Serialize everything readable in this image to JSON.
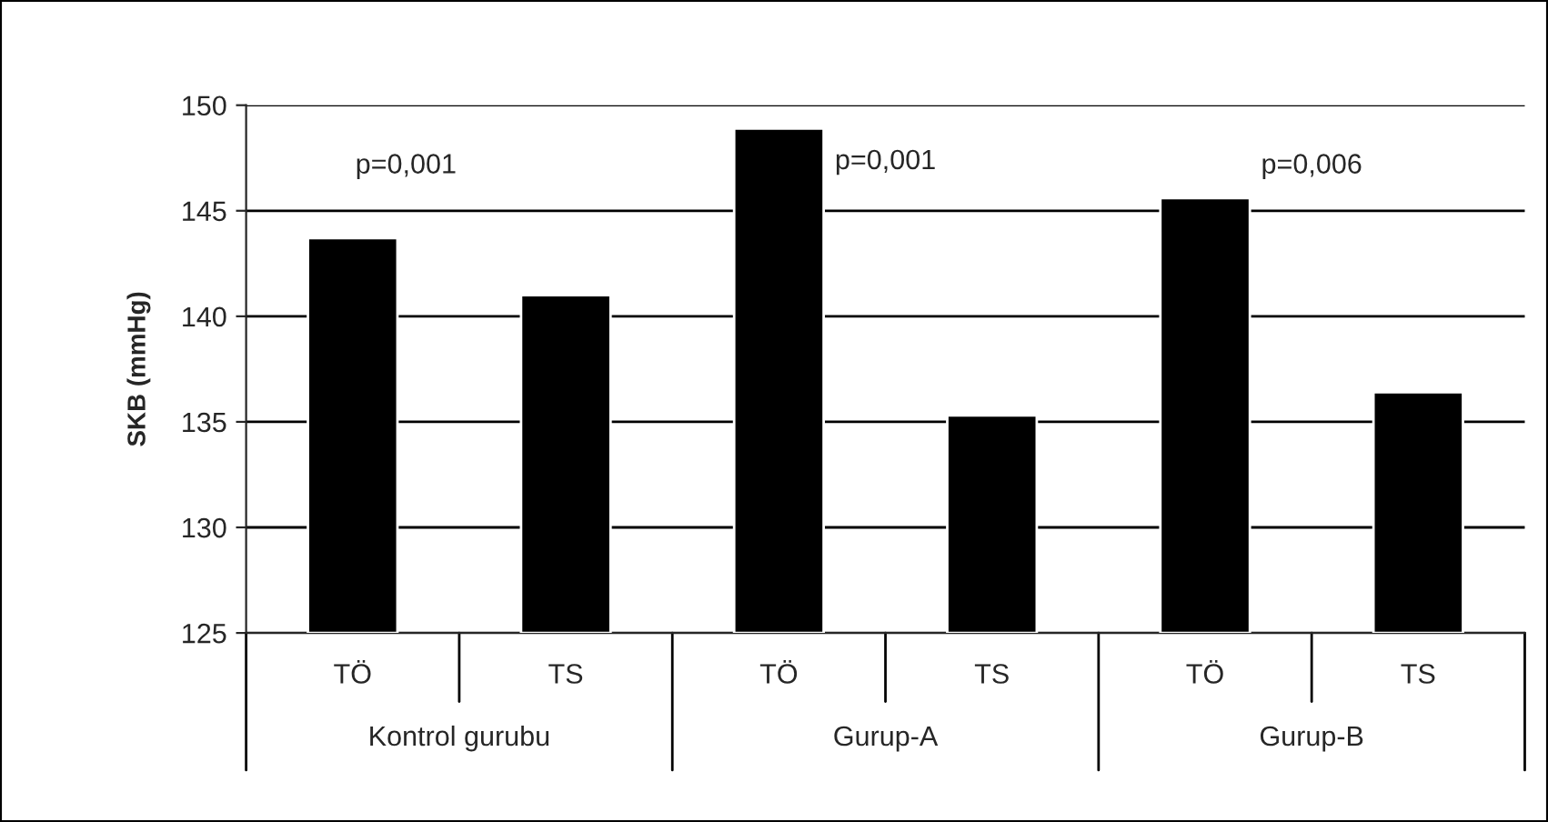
{
  "chart_data": {
    "type": "bar",
    "ylabel": "SKB (mmHg)",
    "categories": [
      "TÖ",
      "TS",
      "TÖ",
      "TS",
      "TÖ",
      "TS"
    ],
    "values": [
      143.7,
      141.0,
      148.9,
      135.3,
      145.6,
      136.4
    ],
    "color": "#000000",
    "ylim": [
      125,
      150
    ],
    "yticks": [
      125,
      130,
      135,
      140,
      145,
      150
    ],
    "grid": "y",
    "annotations": [
      "p=0,001",
      "p=0,001",
      "p=0,006",
      "Kontrol gurubu",
      "Gurup-A",
      "Gurup-B"
    ]
  }
}
